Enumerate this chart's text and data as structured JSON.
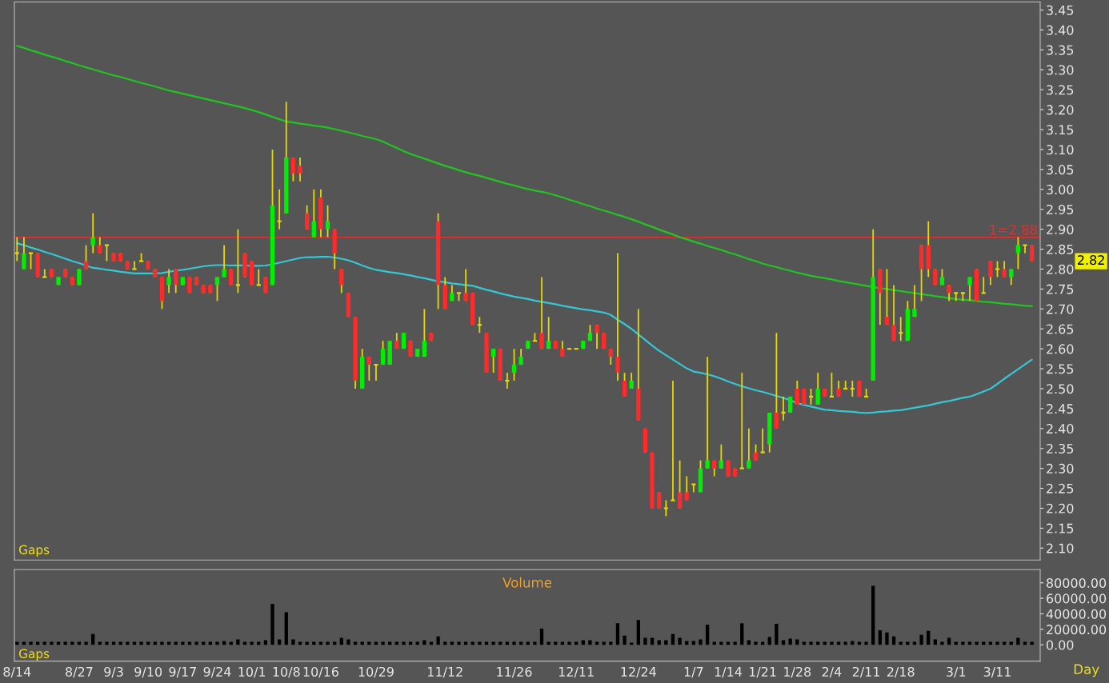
{
  "chart_data": [
    {
      "type": "candlestick",
      "categories": [
        null,
        null,
        null,
        null,
        null,
        null,
        null,
        null,
        null,
        null,
        null,
        null,
        null,
        null,
        null,
        null,
        null,
        null,
        null,
        null,
        null,
        null,
        null,
        null,
        null,
        null,
        null,
        null,
        null,
        null,
        null,
        null,
        null,
        null,
        null,
        null,
        null,
        null,
        null,
        null,
        null,
        null,
        null,
        null,
        null,
        null,
        null,
        null,
        null,
        null,
        null,
        null,
        null,
        null,
        null,
        null,
        null,
        null,
        null,
        null,
        null,
        null,
        null,
        null,
        null,
        null,
        null,
        null,
        null,
        null,
        null,
        null,
        null,
        null,
        null,
        null,
        null,
        null,
        null,
        null,
        null,
        null,
        null,
        null,
        null,
        null,
        null,
        null,
        null,
        null,
        null,
        null,
        null,
        null,
        null,
        null,
        null,
        null,
        null,
        null,
        null,
        null,
        null,
        null,
        null,
        null,
        null,
        null,
        null,
        null,
        null,
        null,
        null,
        null,
        null,
        null,
        null,
        null,
        null,
        null,
        null,
        null,
        null,
        null,
        null,
        null,
        null,
        null,
        null,
        null,
        null,
        null,
        null,
        null,
        null,
        null,
        null,
        null,
        null,
        null,
        null,
        null,
        null,
        null,
        null,
        null,
        null,
        null
      ],
      "ohlc": [
        [
          2.84,
          2.88,
          2.82,
          2.84
        ],
        [
          2.8,
          2.88,
          2.8,
          2.84
        ],
        [
          2.84,
          2.84,
          2.8,
          2.84
        ],
        [
          2.84,
          2.84,
          2.78,
          2.78
        ],
        [
          2.78,
          2.8,
          2.78,
          2.78
        ],
        [
          2.8,
          2.8,
          2.78,
          2.78
        ],
        [
          2.76,
          2.78,
          2.76,
          2.78
        ],
        [
          2.8,
          2.8,
          2.78,
          2.78
        ],
        [
          2.78,
          2.78,
          2.76,
          2.76
        ],
        [
          2.76,
          2.8,
          2.76,
          2.8
        ],
        [
          2.82,
          2.86,
          2.8,
          2.8
        ],
        [
          2.86,
          2.94,
          2.84,
          2.88
        ],
        [
          2.86,
          2.88,
          2.84,
          2.84
        ],
        [
          2.86,
          2.86,
          2.82,
          2.86
        ],
        [
          2.84,
          2.84,
          2.82,
          2.82
        ],
        [
          2.84,
          2.84,
          2.82,
          2.82
        ],
        [
          2.82,
          2.82,
          2.8,
          2.8
        ],
        [
          2.8,
          2.82,
          2.8,
          2.8
        ],
        [
          2.82,
          2.84,
          2.82,
          2.82
        ],
        [
          2.82,
          2.82,
          2.8,
          2.8
        ],
        [
          2.8,
          2.8,
          2.78,
          2.78
        ],
        [
          2.78,
          2.78,
          2.7,
          2.72
        ],
        [
          2.76,
          2.8,
          2.74,
          2.78
        ],
        [
          2.8,
          2.8,
          2.74,
          2.76
        ],
        [
          2.76,
          2.78,
          2.76,
          2.78
        ],
        [
          2.78,
          2.78,
          2.74,
          2.74
        ],
        [
          2.78,
          2.78,
          2.76,
          2.76
        ],
        [
          2.76,
          2.76,
          2.74,
          2.74
        ],
        [
          2.76,
          2.76,
          2.74,
          2.74
        ],
        [
          2.76,
          2.78,
          2.72,
          2.78
        ],
        [
          2.78,
          2.86,
          2.78,
          2.8
        ],
        [
          2.8,
          2.8,
          2.76,
          2.76
        ],
        [
          2.76,
          2.9,
          2.74,
          2.76
        ],
        [
          2.84,
          2.84,
          2.78,
          2.78
        ],
        [
          2.82,
          2.82,
          2.76,
          2.76
        ],
        [
          2.76,
          2.8,
          2.76,
          2.76
        ],
        [
          2.78,
          2.78,
          2.74,
          2.74
        ],
        [
          2.76,
          3.1,
          2.76,
          2.96
        ],
        [
          2.92,
          3.0,
          2.9,
          2.92
        ],
        [
          2.94,
          3.22,
          2.94,
          3.08
        ],
        [
          3.08,
          3.08,
          3.02,
          3.04
        ],
        [
          3.06,
          3.08,
          3.02,
          3.04
        ],
        [
          2.94,
          2.96,
          2.9,
          2.9
        ],
        [
          2.88,
          3.0,
          2.88,
          2.92
        ],
        [
          2.98,
          3.0,
          2.88,
          2.9
        ],
        [
          2.9,
          2.96,
          2.88,
          2.92
        ],
        [
          2.9,
          2.9,
          2.8,
          2.84
        ],
        [
          2.8,
          2.8,
          2.74,
          2.76
        ],
        [
          2.74,
          2.74,
          2.68,
          2.68
        ],
        [
          2.68,
          2.68,
          2.5,
          2.52
        ],
        [
          2.5,
          2.6,
          2.5,
          2.58
        ],
        [
          2.58,
          2.58,
          2.52,
          2.56
        ],
        [
          2.56,
          2.56,
          2.52,
          2.56
        ],
        [
          2.56,
          2.62,
          2.56,
          2.6
        ],
        [
          2.56,
          2.62,
          2.56,
          2.62
        ],
        [
          2.62,
          2.64,
          2.6,
          2.6
        ],
        [
          2.6,
          2.64,
          2.6,
          2.64
        ],
        [
          2.62,
          2.62,
          2.58,
          2.58
        ],
        [
          2.58,
          2.6,
          2.58,
          2.6
        ],
        [
          2.58,
          2.7,
          2.58,
          2.62
        ],
        [
          2.64,
          2.64,
          2.62,
          2.62
        ],
        [
          2.92,
          2.94,
          2.7,
          2.76
        ],
        [
          2.76,
          2.78,
          2.7,
          2.7
        ],
        [
          2.72,
          2.76,
          2.72,
          2.74
        ],
        [
          2.74,
          2.74,
          2.72,
          2.74
        ],
        [
          2.74,
          2.8,
          2.72,
          2.72
        ],
        [
          2.74,
          2.74,
          2.66,
          2.66
        ],
        [
          2.66,
          2.68,
          2.64,
          2.66
        ],
        [
          2.64,
          2.64,
          2.54,
          2.54
        ],
        [
          2.58,
          2.6,
          2.54,
          2.6
        ],
        [
          2.6,
          2.6,
          2.52,
          2.52
        ],
        [
          2.52,
          2.54,
          2.5,
          2.52
        ],
        [
          2.54,
          2.6,
          2.52,
          2.56
        ],
        [
          2.56,
          2.6,
          2.56,
          2.58
        ],
        [
          2.6,
          2.62,
          2.6,
          2.62
        ],
        [
          2.62,
          2.64,
          2.62,
          2.62
        ],
        [
          2.64,
          2.78,
          2.6,
          2.6
        ],
        [
          2.6,
          2.68,
          2.6,
          2.62
        ],
        [
          2.62,
          2.62,
          2.6,
          2.6
        ],
        [
          2.6,
          2.62,
          2.58,
          2.58
        ],
        [
          2.6,
          2.6,
          2.6,
          2.6
        ],
        [
          2.6,
          2.6,
          2.6,
          2.6
        ],
        [
          2.6,
          2.62,
          2.6,
          2.62
        ],
        [
          2.62,
          2.66,
          2.62,
          2.64
        ],
        [
          2.66,
          2.66,
          2.6,
          2.64
        ],
        [
          2.64,
          2.64,
          2.6,
          2.6
        ],
        [
          2.6,
          2.6,
          2.56,
          2.58
        ],
        [
          2.58,
          2.84,
          2.52,
          2.54
        ],
        [
          2.52,
          2.54,
          2.48,
          2.48
        ],
        [
          2.5,
          2.54,
          2.5,
          2.52
        ],
        [
          2.5,
          2.7,
          2.42,
          2.42
        ],
        [
          2.4,
          2.4,
          2.34,
          2.34
        ],
        [
          2.34,
          2.34,
          2.2,
          2.2
        ],
        [
          2.24,
          2.24,
          2.2,
          2.2
        ],
        [
          2.2,
          2.22,
          2.18,
          2.2
        ],
        [
          2.22,
          2.52,
          2.22,
          2.22
        ],
        [
          2.24,
          2.32,
          2.2,
          2.2
        ],
        [
          2.24,
          2.28,
          2.22,
          2.22
        ],
        [
          2.26,
          2.26,
          2.24,
          2.26
        ],
        [
          2.24,
          2.32,
          2.24,
          2.3
        ],
        [
          2.3,
          2.58,
          2.3,
          2.32
        ],
        [
          2.32,
          2.32,
          2.28,
          2.3
        ],
        [
          2.3,
          2.36,
          2.3,
          2.32
        ],
        [
          2.32,
          2.32,
          2.28,
          2.28
        ],
        [
          2.3,
          2.3,
          2.28,
          2.28
        ],
        [
          2.3,
          2.54,
          2.3,
          2.3
        ],
        [
          2.3,
          2.4,
          2.3,
          2.32
        ],
        [
          2.34,
          2.36,
          2.32,
          2.32
        ],
        [
          2.34,
          2.4,
          2.34,
          2.34
        ],
        [
          2.36,
          2.44,
          2.34,
          2.44
        ],
        [
          2.44,
          2.64,
          2.4,
          2.4
        ],
        [
          2.44,
          2.48,
          2.42,
          2.44
        ],
        [
          2.44,
          2.48,
          2.44,
          2.48
        ],
        [
          2.5,
          2.52,
          2.46,
          2.46
        ],
        [
          2.5,
          2.5,
          2.46,
          2.46
        ],
        [
          2.48,
          2.5,
          2.46,
          2.48
        ],
        [
          2.46,
          2.54,
          2.46,
          2.5
        ],
        [
          2.5,
          2.5,
          2.48,
          2.48
        ],
        [
          2.48,
          2.54,
          2.48,
          2.48
        ],
        [
          2.5,
          2.52,
          2.48,
          2.48
        ],
        [
          2.5,
          2.52,
          2.5,
          2.5
        ],
        [
          2.5,
          2.52,
          2.48,
          2.5
        ],
        [
          2.52,
          2.52,
          2.48,
          2.48
        ],
        [
          2.48,
          2.5,
          2.48,
          2.48
        ],
        [
          2.52,
          2.9,
          2.52,
          2.78
        ],
        [
          2.8,
          2.8,
          2.66,
          2.74
        ],
        [
          2.68,
          2.8,
          2.66,
          2.66
        ],
        [
          2.66,
          2.76,
          2.62,
          2.62
        ],
        [
          2.64,
          2.68,
          2.62,
          2.64
        ],
        [
          2.62,
          2.72,
          2.62,
          2.7
        ],
        [
          2.68,
          2.76,
          2.68,
          2.7
        ],
        [
          2.86,
          2.86,
          2.72,
          2.8
        ],
        [
          2.86,
          2.92,
          2.78,
          2.8
        ],
        [
          2.8,
          2.8,
          2.76,
          2.76
        ],
        [
          2.76,
          2.8,
          2.76,
          2.78
        ],
        [
          2.76,
          2.76,
          2.72,
          2.74
        ],
        [
          2.74,
          2.74,
          2.72,
          2.74
        ],
        [
          2.74,
          2.74,
          2.72,
          2.74
        ],
        [
          2.76,
          2.78,
          2.72,
          2.78
        ],
        [
          2.8,
          2.8,
          2.72,
          2.72
        ],
        [
          2.74,
          2.78,
          2.74,
          2.74
        ],
        [
          2.82,
          2.82,
          2.76,
          2.78
        ],
        [
          2.8,
          2.82,
          2.78,
          2.8
        ],
        [
          2.8,
          2.82,
          2.78,
          2.78
        ],
        [
          2.78,
          2.8,
          2.76,
          2.8
        ],
        [
          2.84,
          2.88,
          2.8,
          2.86
        ],
        [
          2.86,
          2.86,
          2.84,
          2.86
        ],
        [
          2.86,
          2.86,
          2.82,
          2.82
        ]
      ],
      "colors": [
        "#e6d800",
        "#00ee00",
        "#e6d800",
        "#ff2a2a",
        "#e6d800",
        "#ff2a2a",
        "#00ee00",
        "#ff2a2a",
        "#ff2a2a",
        "#00ee00",
        "#ff2a2a",
        "#00ee00",
        "#ff2a2a",
        "#e6d800",
        "#ff2a2a",
        "#ff2a2a",
        "#ff2a2a",
        "#e6d800",
        "#e6d800",
        "#ff2a2a",
        "#ff2a2a",
        "#ff2a2a",
        "#00ee00",
        "#ff2a2a",
        "#00ee00",
        "#ff2a2a",
        "#ff2a2a",
        "#ff2a2a",
        "#ff2a2a",
        "#00ee00",
        "#00ee00",
        "#ff2a2a",
        "#e6d800",
        "#ff2a2a",
        "#ff2a2a",
        "#e6d800",
        "#ff2a2a",
        "#00ee00",
        "#e6d800",
        "#00ee00",
        "#ff2a2a",
        "#ff2a2a",
        "#ff2a2a",
        "#00ee00",
        "#ff2a2a",
        "#00ee00",
        "#ff2a2a",
        "#ff2a2a",
        "#ff2a2a",
        "#ff2a2a",
        "#00ee00",
        "#ff2a2a",
        "#e6d800",
        "#00ee00",
        "#00ee00",
        "#ff2a2a",
        "#00ee00",
        "#ff2a2a",
        "#00ee00",
        "#00ee00",
        "#ff2a2a",
        "#ff2a2a",
        "#ff2a2a",
        "#00ee00",
        "#e6d800",
        "#ff2a2a",
        "#ff2a2a",
        "#e6d800",
        "#ff2a2a",
        "#00ee00",
        "#ff2a2a",
        "#e6d800",
        "#00ee00",
        "#00ee00",
        "#00ee00",
        "#e6d800",
        "#ff2a2a",
        "#00ee00",
        "#ff2a2a",
        "#ff2a2a",
        "#e6d800",
        "#e6d800",
        "#00ee00",
        "#00ee00",
        "#ff2a2a",
        "#ff2a2a",
        "#ff2a2a",
        "#ff2a2a",
        "#ff2a2a",
        "#00ee00",
        "#ff2a2a",
        "#ff2a2a",
        "#ff2a2a",
        "#ff2a2a",
        "#e6d800",
        "#e6d800",
        "#ff2a2a",
        "#ff2a2a",
        "#e6d800",
        "#00ee00",
        "#00ee00",
        "#ff2a2a",
        "#00ee00",
        "#ff2a2a",
        "#ff2a2a",
        "#e6d800",
        "#00ee00",
        "#ff2a2a",
        "#e6d800",
        "#00ee00",
        "#ff2a2a",
        "#e6d800",
        "#00ee00",
        "#ff2a2a",
        "#ff2a2a",
        "#e6d800",
        "#00ee00",
        "#ff2a2a",
        "#e6d800",
        "#ff2a2a",
        "#e6d800",
        "#e6d800",
        "#ff2a2a",
        "#e6d800",
        "#00ee00",
        "#ff2a2a",
        "#ff2a2a",
        "#ff2a2a",
        "#e6d800",
        "#00ee00",
        "#00ee00",
        "#ff2a2a",
        "#ff2a2a",
        "#ff2a2a",
        "#00ee00",
        "#ff2a2a",
        "#e6d800",
        "#e6d800",
        "#00ee00",
        "#ff2a2a",
        "#e6d800",
        "#ff2a2a",
        "#e6d800",
        "#ff2a2a",
        "#00ee00",
        "#00ee00",
        "#e6d800",
        "#ff2a2a"
      ],
      "series": [
        {
          "type": "line",
          "color": "#36c6d4",
          "values": [
            2.865,
            2.86,
            2.854,
            2.849,
            2.843,
            2.838,
            2.832,
            2.826,
            2.82,
            2.815,
            2.809,
            2.803,
            2.801,
            2.798,
            2.796,
            2.793,
            2.791,
            2.789,
            2.789,
            2.789,
            2.789,
            2.79,
            2.793,
            2.796,
            2.798,
            2.801,
            2.804,
            2.807,
            2.809,
            2.81,
            2.81,
            2.809,
            2.809,
            2.809,
            2.808,
            2.808,
            2.809,
            2.812,
            2.816,
            2.82,
            2.824,
            2.828,
            2.83,
            2.83,
            2.831,
            2.831,
            2.829,
            2.826,
            2.822,
            2.816,
            2.809,
            2.803,
            2.798,
            2.795,
            2.792,
            2.79,
            2.787,
            2.784,
            2.78,
            2.777,
            2.773,
            2.769,
            2.767,
            2.764,
            2.762,
            2.76,
            2.758,
            2.753,
            2.748,
            2.744,
            2.739,
            2.735,
            2.731,
            2.728,
            2.725,
            2.721,
            2.718,
            2.715,
            2.712,
            2.708,
            2.705,
            2.702,
            2.699,
            2.697,
            2.694,
            2.691,
            2.685,
            2.673,
            2.662,
            2.65,
            2.636,
            2.622,
            2.608,
            2.595,
            2.584,
            2.573,
            2.562,
            2.551,
            2.543,
            2.54,
            2.536,
            2.531,
            2.525,
            2.518,
            2.512,
            2.506,
            2.501,
            2.496,
            2.492,
            2.487,
            2.482,
            2.477,
            2.471,
            2.464,
            2.459,
            2.455,
            2.451,
            2.447,
            2.446,
            2.444,
            2.443,
            2.442,
            2.44,
            2.439,
            2.44,
            2.442,
            2.443,
            2.445,
            2.446,
            2.449,
            2.452,
            2.455,
            2.458,
            2.462,
            2.466,
            2.469,
            2.473,
            2.477,
            2.48,
            2.486,
            2.493,
            2.5,
            2.512,
            2.525,
            2.537,
            2.549,
            2.561,
            2.573
          ]
        },
        {
          "type": "line",
          "color": "#22c422",
          "values": [
            3.36,
            3.355,
            3.349,
            3.344,
            3.338,
            3.333,
            3.328,
            3.322,
            3.317,
            3.311,
            3.306,
            3.301,
            3.296,
            3.291,
            3.286,
            3.282,
            3.277,
            3.272,
            3.267,
            3.263,
            3.258,
            3.253,
            3.248,
            3.244,
            3.24,
            3.236,
            3.232,
            3.228,
            3.224,
            3.22,
            3.216,
            3.212,
            3.208,
            3.204,
            3.199,
            3.194,
            3.188,
            3.182,
            3.176,
            3.17,
            3.168,
            3.165,
            3.163,
            3.16,
            3.158,
            3.155,
            3.151,
            3.147,
            3.143,
            3.139,
            3.134,
            3.13,
            3.126,
            3.12,
            3.112,
            3.104,
            3.096,
            3.089,
            3.083,
            3.077,
            3.071,
            3.065,
            3.059,
            3.054,
            3.048,
            3.043,
            3.038,
            3.034,
            3.029,
            3.024,
            3.019,
            3.014,
            3.01,
            3.005,
            3.001,
            2.997,
            2.994,
            2.99,
            2.985,
            2.98,
            2.974,
            2.969,
            2.963,
            2.958,
            2.952,
            2.947,
            2.942,
            2.936,
            2.931,
            2.925,
            2.919,
            2.912,
            2.906,
            2.899,
            2.893,
            2.887,
            2.88,
            2.875,
            2.869,
            2.864,
            2.858,
            2.853,
            2.848,
            2.842,
            2.837,
            2.831,
            2.825,
            2.82,
            2.814,
            2.809,
            2.805,
            2.8,
            2.796,
            2.791,
            2.787,
            2.783,
            2.78,
            2.777,
            2.774,
            2.77,
            2.767,
            2.764,
            2.761,
            2.758,
            2.755,
            2.752,
            2.75,
            2.747,
            2.745,
            2.742,
            2.74,
            2.737,
            2.735,
            2.732,
            2.73,
            2.727,
            2.725,
            2.723,
            2.722,
            2.72,
            2.718,
            2.717,
            2.715,
            2.713,
            2.712,
            2.71,
            2.708,
            2.707
          ]
        }
      ],
      "ylim": [
        2.07,
        3.47
      ],
      "yticks": [
        {
          "value": 2.1,
          "label": "2.10"
        },
        2.15,
        {
          "value": 2.2,
          "label": "2.20"
        },
        2.25,
        {
          "value": 2.3,
          "label": "2.30"
        },
        2.35,
        {
          "value": 2.4,
          "label": "2.40"
        },
        2.45,
        {
          "value": 2.5,
          "label": "2.50"
        },
        2.55,
        {
          "value": 2.6,
          "label": "2.60"
        },
        2.65,
        {
          "value": 2.7,
          "label": "2.70"
        },
        2.75,
        {
          "value": 2.8,
          "label": "2.80"
        },
        2.85,
        {
          "value": 2.9,
          "label": "2.90"
        },
        2.95,
        {
          "value": 3.0,
          "label": "3.00"
        },
        3.05,
        {
          "value": 3.1,
          "label": "3.10"
        },
        3.15,
        {
          "value": 3.2,
          "label": "3.20"
        },
        3.25,
        {
          "value": 3.3,
          "label": "3.30"
        },
        3.35,
        {
          "value": 3.4,
          "label": "3.40"
        },
        3.45
      ],
      "tick_labels": "y",
      "ref_lines": [
        {
          "axis": "y",
          "value": 2.88,
          "label": "1=2.88",
          "color": "#e03030"
        }
      ],
      "annotations": [
        "Gaps",
        "2.82"
      ]
    },
    {
      "type": "bar",
      "title": "Volume",
      "xlabel": "Day",
      "color": "#000000",
      "categories": [
        "8/14",
        null,
        null,
        null,
        null,
        null,
        null,
        null,
        null,
        "8/27",
        null,
        null,
        null,
        null,
        "9/3",
        null,
        null,
        null,
        null,
        "9/10",
        null,
        null,
        null,
        null,
        "9/17",
        null,
        null,
        null,
        null,
        "9/24",
        null,
        null,
        null,
        null,
        "10/1",
        null,
        null,
        null,
        null,
        "10/8",
        null,
        null,
        null,
        null,
        "10/16",
        null,
        null,
        null,
        null,
        null,
        null,
        null,
        "10/29",
        null,
        null,
        null,
        null,
        null,
        null,
        null,
        null,
        null,
        "11/12",
        null,
        null,
        null,
        null,
        null,
        null,
        null,
        null,
        null,
        "11/26",
        null,
        null,
        null,
        null,
        null,
        null,
        null,
        null,
        "12/11",
        null,
        null,
        null,
        null,
        null,
        null,
        null,
        null,
        "12/24",
        null,
        null,
        null,
        null,
        null,
        null,
        null,
        "1/7",
        null,
        null,
        null,
        null,
        "1/14",
        null,
        null,
        null,
        null,
        "1/21",
        null,
        null,
        null,
        null,
        "1/28",
        null,
        null,
        null,
        null,
        "2/4",
        null,
        null,
        null,
        null,
        "2/11",
        null,
        null,
        null,
        null,
        "2/18",
        null,
        null,
        null,
        null,
        null,
        null,
        null,
        "3/1",
        null,
        null,
        null,
        null,
        null,
        "3/11",
        null,
        null,
        null,
        null,
        null
      ],
      "values": [
        4000,
        4000,
        4000,
        4000,
        4000,
        4000,
        4000,
        4000,
        4000,
        4000,
        4000,
        14000,
        4000,
        4000,
        4000,
        4000,
        4000,
        4000,
        4000,
        4000,
        4000,
        4000,
        4000,
        4000,
        4000,
        4000,
        4000,
        4000,
        4000,
        4000,
        5000,
        4000,
        7000,
        4000,
        4000,
        4000,
        6000,
        53000,
        7000,
        42000,
        7000,
        4000,
        4000,
        4000,
        4000,
        4000,
        4000,
        9000,
        7000,
        4000,
        4000,
        4000,
        4000,
        4000,
        4000,
        4000,
        4000,
        4000,
        4000,
        6000,
        4000,
        11000,
        4000,
        4000,
        4000,
        4000,
        4000,
        4000,
        4000,
        4000,
        4000,
        4000,
        4000,
        4000,
        4000,
        4000,
        21000,
        4000,
        4000,
        4000,
        4000,
        4000,
        6000,
        6000,
        4000,
        4000,
        4000,
        28000,
        12000,
        3000,
        32000,
        9000,
        9000,
        6000,
        6000,
        14000,
        9000,
        5000,
        5000,
        7000,
        26000,
        4000,
        4000,
        4000,
        4000,
        28000,
        6000,
        4000,
        4000,
        10000,
        27000,
        6000,
        8000,
        7000,
        4000,
        4000,
        4000,
        4000,
        4000,
        4000,
        4000,
        5000,
        4000,
        4000,
        76000,
        19000,
        16000,
        11000,
        4000,
        4000,
        4000,
        13000,
        18000,
        7000,
        4000,
        9000,
        4000,
        4000,
        4000,
        4000,
        4000,
        4000,
        4000,
        4000,
        4000,
        9000,
        4000,
        4000
      ],
      "ylim": [
        -21000,
        97000
      ],
      "yticks": [
        {
          "value": 0,
          "label": "0.00"
        },
        {
          "value": 20000,
          "label": "20000.00"
        },
        {
          "value": 40000,
          "label": "40000.00"
        },
        {
          "value": 60000,
          "label": "60000.00"
        },
        {
          "value": 80000,
          "label": "80000.00"
        }
      ],
      "annotations": [
        "Gaps"
      ]
    }
  ]
}
